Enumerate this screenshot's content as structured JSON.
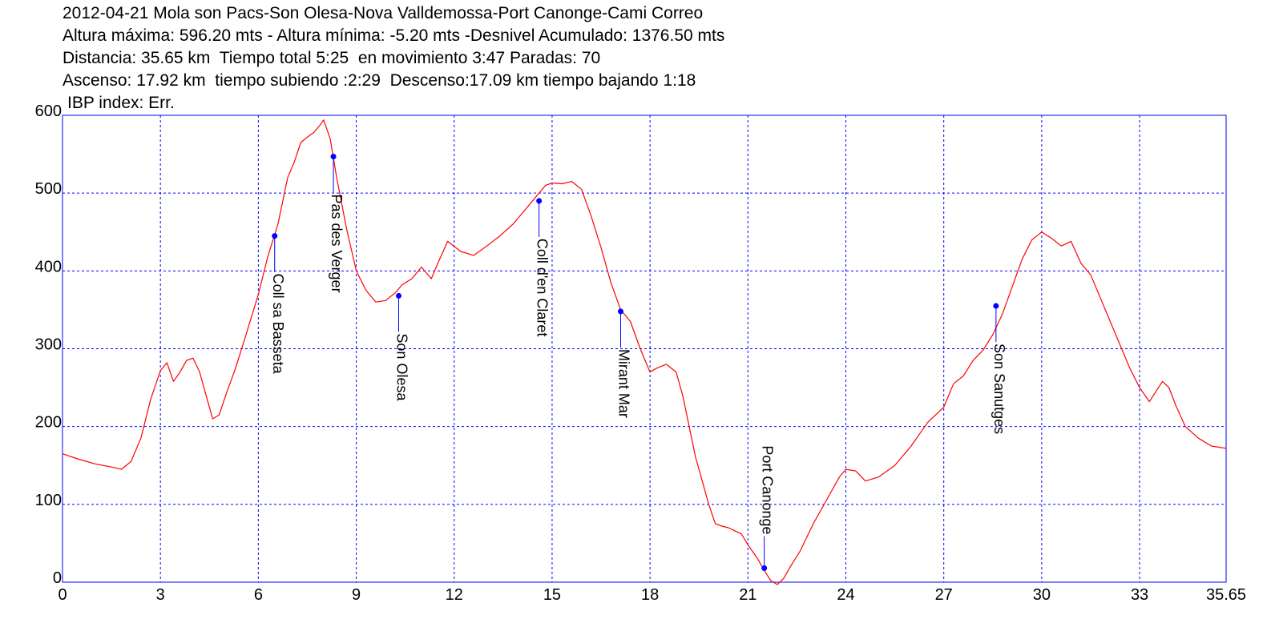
{
  "header": {
    "lines": [
      "2012-04-21 Mola son Pacs-Son Olesa-Nova Valldemossa-Port Canonge-Cami Correo",
      "Altura máxima: 596.20 mts - Altura mínima: -5.20 mts -Desnivel Acumulado: 1376.50 mts",
      "Distancia: 35.65 km  Tiempo total 5:25  en movimiento 3:47 Paradas: 70",
      "Ascenso: 17.92 km  tiempo subiendo :2:29  Descenso:17.09 km tiempo bajando 1:18"
    ],
    "ibp": "IBP index: Err."
  },
  "chart_data": {
    "type": "line",
    "xlim": [
      0,
      35.65
    ],
    "ylim": [
      0,
      600
    ],
    "x_ticks": [
      "0",
      "3",
      "6",
      "9",
      "12",
      "15",
      "18",
      "21",
      "24",
      "27",
      "30",
      "33",
      "35.65"
    ],
    "y_ticks": [
      "0",
      "100",
      "200",
      "300",
      "400",
      "500",
      "600"
    ],
    "grid": true,
    "line_color": "#ff0000",
    "axis_color": "#0000ff",
    "marker_color": "#0000ff",
    "series": [
      {
        "x": [
          0,
          0.5,
          1,
          1.5,
          1.8,
          2.1,
          2.4,
          2.7,
          3.0,
          3.2,
          3.4,
          3.6,
          3.8,
          4.0,
          4.2,
          4.4,
          4.6,
          4.8,
          5.0,
          5.3,
          5.6,
          6.0,
          6.3,
          6.6,
          6.9,
          7.1,
          7.3,
          7.5,
          7.7,
          7.9,
          8.0,
          8.2,
          8.4,
          8.7,
          9.0,
          9.3,
          9.6,
          9.9,
          10.2,
          10.4,
          10.7,
          11.0,
          11.3,
          11.5,
          11.8,
          12.2,
          12.6,
          13.0,
          13.4,
          13.8,
          14.2,
          14.5,
          14.8,
          15.0,
          15.3,
          15.6,
          15.9,
          16.2,
          16.5,
          16.8,
          17.1,
          17.4,
          17.7,
          18.0,
          18.2,
          18.5,
          18.8,
          19.0,
          19.2,
          19.4,
          19.6,
          19.8,
          20.0,
          20.2,
          20.4,
          20.6,
          20.8,
          21.0,
          21.3,
          21.5,
          21.7,
          21.9,
          22.1,
          22.3,
          22.6,
          23.0,
          23.4,
          23.8,
          24.0,
          24.3,
          24.6,
          25.0,
          25.5,
          26.0,
          26.5,
          27.0,
          27.3,
          27.6,
          27.9,
          28.2,
          28.5,
          28.8,
          29.1,
          29.4,
          29.7,
          30.0,
          30.3,
          30.6,
          30.9,
          31.2,
          31.5,
          31.8,
          32.1,
          32.4,
          32.7,
          33.0,
          33.3,
          33.5,
          33.7,
          33.9,
          34.1,
          34.4,
          34.8,
          35.2,
          35.65
        ],
        "y": [
          165,
          158,
          152,
          148,
          145,
          155,
          185,
          235,
          272,
          282,
          258,
          270,
          285,
          288,
          270,
          240,
          210,
          215,
          240,
          275,
          315,
          370,
          420,
          460,
          520,
          540,
          565,
          572,
          578,
          588,
          594,
          570,
          520,
          455,
          400,
          375,
          360,
          362,
          372,
          382,
          390,
          405,
          390,
          410,
          438,
          425,
          420,
          432,
          445,
          460,
          480,
          495,
          510,
          513,
          512,
          515,
          505,
          470,
          430,
          385,
          350,
          335,
          300,
          270,
          275,
          280,
          270,
          240,
          200,
          160,
          130,
          100,
          75,
          72,
          70,
          66,
          62,
          48,
          30,
          15,
          2,
          -3,
          5,
          20,
          40,
          75,
          105,
          135,
          145,
          143,
          130,
          135,
          150,
          175,
          205,
          225,
          255,
          265,
          285,
          298,
          318,
          345,
          380,
          415,
          440,
          450,
          442,
          432,
          438,
          410,
          395,
          365,
          335,
          305,
          275,
          250,
          232,
          245,
          258,
          250,
          228,
          200,
          185,
          175,
          172
        ]
      }
    ],
    "waypoints": [
      {
        "name": "Coll sa Basseta",
        "x": 6.5,
        "y": 445,
        "label_dir": "down"
      },
      {
        "name": "Pas des Verger",
        "x": 8.3,
        "y": 547,
        "label_dir": "down"
      },
      {
        "name": "Son Olesa",
        "x": 10.3,
        "y": 368,
        "label_dir": "down"
      },
      {
        "name": "Coll d'en Claret",
        "x": 14.6,
        "y": 490,
        "label_dir": "down"
      },
      {
        "name": "Mirant Mar",
        "x": 17.1,
        "y": 348,
        "label_dir": "down"
      },
      {
        "name": "Port Canonge",
        "x": 21.5,
        "y": 18,
        "label_dir": "up"
      },
      {
        "name": "Son Sanutges",
        "x": 28.6,
        "y": 355,
        "label_dir": "down"
      }
    ]
  }
}
